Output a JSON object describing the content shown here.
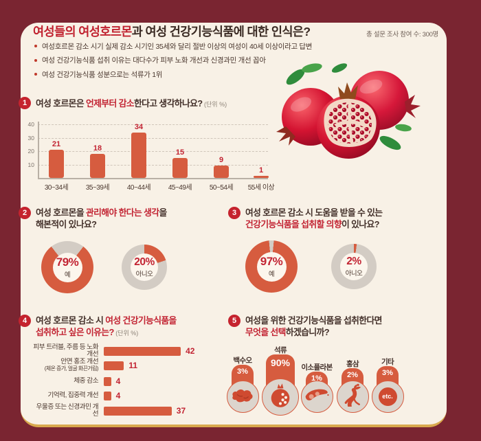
{
  "colors": {
    "background": "#7a2531",
    "card": "#f8f1e6",
    "accent_bar": "#d65c3f",
    "crimson_text": "#c22433",
    "dark_text": "#43302a",
    "donut_gray": "#d3ccc4",
    "gold_border": "#d9a94e",
    "badge_red": "#c5232e"
  },
  "meta": {
    "participants": "총 설문 조사 참여 수: 300명"
  },
  "header": {
    "title_red": "여성들의 여성호르몬",
    "title_rest": "과 여성 건강기능식품에 대한 인식은?",
    "bullets": [
      "여성호르몬 감소 시기 실제 감소 시기인 35세와 달리 절반 이상의 여성이 40세 이상이라고 답변",
      "여성 건강기능식품 섭취 이유는 대다수가 피부 노화 개선과 신경과민 개선 꼽아",
      "여성 건강기능식품 성분으로는 석류가 1위"
    ]
  },
  "chart_data": [
    {
      "id": "q1",
      "type": "bar",
      "number": "1",
      "title_lines": [
        [
          {
            "t": "여성 호르몬은 ",
            "c": "dark"
          },
          {
            "t": "언제부터 감소",
            "c": "red"
          },
          {
            "t": "한다고 생각하나요?",
            "c": "dark"
          },
          {
            "t": "  (단위 %)",
            "c": "unit"
          }
        ]
      ],
      "categories": [
        "30~34세",
        "35~39세",
        "40~44세",
        "45~49세",
        "50~54세",
        "55세 이상"
      ],
      "values": [
        21,
        18,
        34,
        15,
        9,
        1
      ],
      "yticks": [
        10,
        20,
        30,
        40
      ],
      "ylim": [
        0,
        40
      ],
      "grid": "dashed"
    },
    {
      "id": "q2",
      "type": "donut-pair",
      "number": "2",
      "title_lines": [
        [
          {
            "t": "여성 호르몬을 ",
            "c": "dark"
          },
          {
            "t": "관리해야 한다는 생각",
            "c": "red"
          },
          {
            "t": "을",
            "c": "dark"
          }
        ],
        [
          {
            "t": "해본적이 있나요?",
            "c": "dark"
          }
        ]
      ],
      "donuts": [
        {
          "value": 79,
          "pct": "79%",
          "label": "예",
          "style": "major"
        },
        {
          "value": 20,
          "pct": "20%",
          "label": "아니오",
          "style": "minor"
        }
      ]
    },
    {
      "id": "q3",
      "type": "donut-pair",
      "number": "3",
      "title_lines": [
        [
          {
            "t": "여성 호르몬 감소 시 도움을 받을 수 있는",
            "c": "dark"
          }
        ],
        [
          {
            "t": "건강기능식품을 섭취할 의향",
            "c": "red"
          },
          {
            "t": "이 있나요?",
            "c": "dark"
          }
        ]
      ],
      "donuts": [
        {
          "value": 97,
          "pct": "97%",
          "label": "예",
          "style": "major"
        },
        {
          "value": 2,
          "pct": "2%",
          "label": "아니오",
          "style": "minor"
        }
      ]
    },
    {
      "id": "q4",
      "type": "hbar",
      "number": "4",
      "title_lines": [
        [
          {
            "t": "여성 호르몬 감소 시 ",
            "c": "dark"
          },
          {
            "t": "여성 건강기능식품을",
            "c": "red"
          }
        ],
        [
          {
            "t": "섭취하고 싶은 이유는?",
            "c": "red"
          },
          {
            "t": " (단위 %)",
            "c": "unit"
          }
        ]
      ],
      "categories": [
        "피부 트러블, 주름 등 노화 개선",
        "안면 홍조 개선",
        "체중 감소",
        "기억력, 집중력 개선",
        "우울증 또는 신경과민 개선"
      ],
      "sublabels": [
        "",
        "(체온 증가, 얼굴 화끈거림)",
        "",
        "",
        ""
      ],
      "values": [
        42,
        11,
        4,
        4,
        37
      ],
      "xmax": 50
    },
    {
      "id": "q5",
      "type": "icon-stat",
      "number": "5",
      "title_lines": [
        [
          {
            "t": "여성을 위한 건강기능식품을 섭취한다면",
            "c": "dark"
          }
        ],
        [
          {
            "t": "무엇을 선택",
            "c": "red"
          },
          {
            "t": "하겠습니까?",
            "c": "dark"
          }
        ]
      ],
      "items": [
        {
          "label": "백수오",
          "pct": "3%",
          "icon": "baeksuo-root-icon"
        },
        {
          "label": "석류",
          "pct": "90%",
          "icon": "pomegranate-icon"
        },
        {
          "label": "이소플라본",
          "pct": "1%",
          "icon": "soybean-icon"
        },
        {
          "label": "홍삼",
          "pct": "2%",
          "icon": "red-ginseng-icon"
        },
        {
          "label": "기타",
          "pct": "3%",
          "icon": "etc-badge",
          "etc_text": "etc."
        }
      ]
    }
  ]
}
